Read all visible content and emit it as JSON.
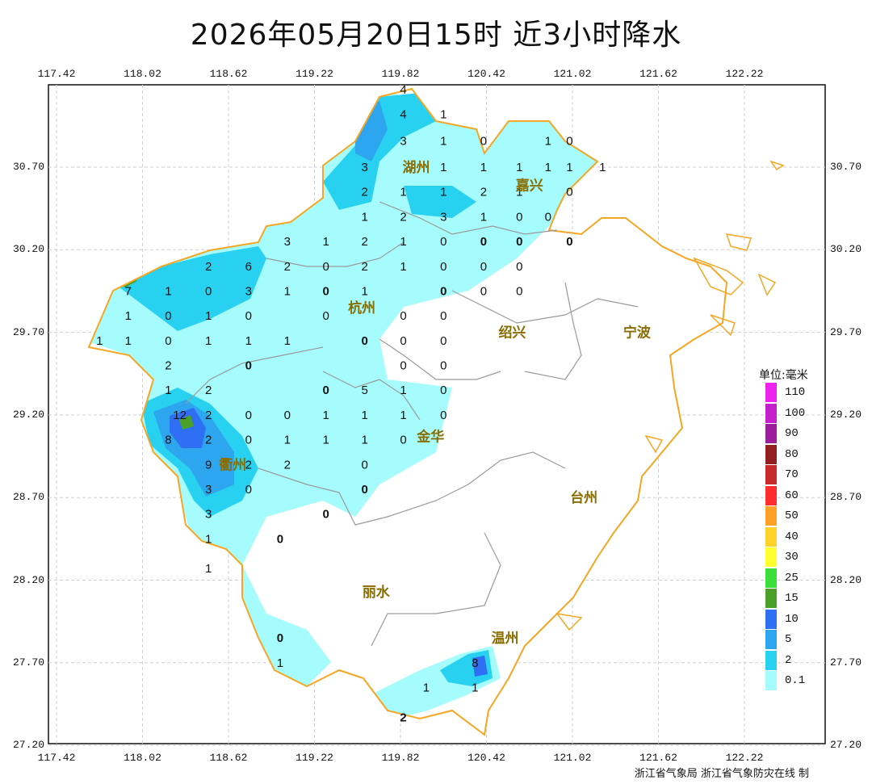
{
  "title": "2026年05月20日15时 近3小时降水",
  "x_ticks": [
    "117.42",
    "118.02",
    "118.62",
    "119.22",
    "119.82",
    "120.42",
    "121.02",
    "121.62",
    "122.22"
  ],
  "y_ticks": [
    "30.70",
    "30.20",
    "29.70",
    "29.20",
    "28.70",
    "28.20",
    "27.70",
    "27.20"
  ],
  "cities": [
    {
      "name": "湖州",
      "lon": 119.93,
      "lat": 30.7
    },
    {
      "name": "嘉兴",
      "lon": 120.72,
      "lat": 30.59
    },
    {
      "name": "杭州",
      "lon": 119.55,
      "lat": 29.85
    },
    {
      "name": "绍兴",
      "lon": 120.6,
      "lat": 29.7
    },
    {
      "name": "宁波",
      "lon": 121.47,
      "lat": 29.7
    },
    {
      "name": "衢州",
      "lon": 118.65,
      "lat": 28.9
    },
    {
      "name": "金华",
      "lon": 120.03,
      "lat": 29.07
    },
    {
      "name": "台州",
      "lon": 121.1,
      "lat": 28.7
    },
    {
      "name": "丽水",
      "lon": 119.65,
      "lat": 28.13
    },
    {
      "name": "温州",
      "lon": 120.55,
      "lat": 27.85
    }
  ],
  "rain_values": [
    {
      "v": "4",
      "lon": 119.84,
      "lat": 31.17
    },
    {
      "v": "4",
      "lon": 119.84,
      "lat": 31.02
    },
    {
      "v": "1",
      "lon": 120.12,
      "lat": 31.02
    },
    {
      "v": "3",
      "lon": 119.84,
      "lat": 30.86
    },
    {
      "v": "1",
      "lon": 120.12,
      "lat": 30.86
    },
    {
      "v": "0",
      "lon": 120.4,
      "lat": 30.86
    },
    {
      "v": "1",
      "lon": 120.85,
      "lat": 30.86
    },
    {
      "v": "0",
      "lon": 121.0,
      "lat": 30.86
    },
    {
      "v": "3",
      "lon": 119.57,
      "lat": 30.7
    },
    {
      "v": "1",
      "lon": 120.12,
      "lat": 30.7
    },
    {
      "v": "1",
      "lon": 120.4,
      "lat": 30.7
    },
    {
      "v": "1",
      "lon": 120.65,
      "lat": 30.7
    },
    {
      "v": "1",
      "lon": 120.85,
      "lat": 30.7
    },
    {
      "v": "1",
      "lon": 121.0,
      "lat": 30.7
    },
    {
      "v": "1",
      "lon": 121.23,
      "lat": 30.7
    },
    {
      "v": "2",
      "lon": 119.57,
      "lat": 30.55
    },
    {
      "v": "1",
      "lon": 119.84,
      "lat": 30.55
    },
    {
      "v": "1",
      "lon": 120.12,
      "lat": 30.55
    },
    {
      "v": "2",
      "lon": 120.4,
      "lat": 30.55
    },
    {
      "v": "1",
      "lon": 120.65,
      "lat": 30.55
    },
    {
      "v": "0",
      "lon": 121.0,
      "lat": 30.55
    },
    {
      "v": "1",
      "lon": 119.57,
      "lat": 30.4
    },
    {
      "v": "2",
      "lon": 119.84,
      "lat": 30.4
    },
    {
      "v": "3",
      "lon": 120.12,
      "lat": 30.4
    },
    {
      "v": "1",
      "lon": 120.4,
      "lat": 30.4
    },
    {
      "v": "0",
      "lon": 120.65,
      "lat": 30.4
    },
    {
      "v": "0",
      "lon": 120.85,
      "lat": 30.4
    },
    {
      "v": "3",
      "lon": 119.03,
      "lat": 30.25
    },
    {
      "v": "1",
      "lon": 119.3,
      "lat": 30.25
    },
    {
      "v": "2",
      "lon": 119.57,
      "lat": 30.25
    },
    {
      "v": "1",
      "lon": 119.84,
      "lat": 30.25
    },
    {
      "v": "0",
      "lon": 120.12,
      "lat": 30.25
    },
    {
      "v": "0",
      "lon": 120.4,
      "lat": 30.25,
      "bold": true
    },
    {
      "v": "0",
      "lon": 120.65,
      "lat": 30.25,
      "bold": true
    },
    {
      "v": "0",
      "lon": 121.0,
      "lat": 30.25,
      "bold": true
    },
    {
      "v": "2",
      "lon": 118.48,
      "lat": 30.1
    },
    {
      "v": "6",
      "lon": 118.76,
      "lat": 30.1
    },
    {
      "v": "2",
      "lon": 119.03,
      "lat": 30.1
    },
    {
      "v": "0",
      "lon": 119.3,
      "lat": 30.1
    },
    {
      "v": "2",
      "lon": 119.57,
      "lat": 30.1
    },
    {
      "v": "1",
      "lon": 119.84,
      "lat": 30.1
    },
    {
      "v": "0",
      "lon": 120.12,
      "lat": 30.1
    },
    {
      "v": "0",
      "lon": 120.4,
      "lat": 30.1
    },
    {
      "v": "0",
      "lon": 120.65,
      "lat": 30.1
    },
    {
      "v": "7",
      "lon": 117.92,
      "lat": 29.95
    },
    {
      "v": "1",
      "lon": 118.2,
      "lat": 29.95
    },
    {
      "v": "0",
      "lon": 118.48,
      "lat": 29.95
    },
    {
      "v": "3",
      "lon": 118.76,
      "lat": 29.95
    },
    {
      "v": "1",
      "lon": 119.03,
      "lat": 29.95
    },
    {
      "v": "0",
      "lon": 119.3,
      "lat": 29.95,
      "bold": true
    },
    {
      "v": "1",
      "lon": 119.57,
      "lat": 29.95
    },
    {
      "v": "0",
      "lon": 120.12,
      "lat": 29.95,
      "bold": true
    },
    {
      "v": "0",
      "lon": 120.4,
      "lat": 29.95
    },
    {
      "v": "0",
      "lon": 120.65,
      "lat": 29.95
    },
    {
      "v": "1",
      "lon": 117.92,
      "lat": 29.8
    },
    {
      "v": "0",
      "lon": 118.2,
      "lat": 29.8
    },
    {
      "v": "1",
      "lon": 118.48,
      "lat": 29.8
    },
    {
      "v": "0",
      "lon": 118.76,
      "lat": 29.8
    },
    {
      "v": "0",
      "lon": 119.3,
      "lat": 29.8
    },
    {
      "v": "0",
      "lon": 119.84,
      "lat": 29.8
    },
    {
      "v": "0",
      "lon": 120.12,
      "lat": 29.8
    },
    {
      "v": "1",
      "lon": 117.72,
      "lat": 29.65
    },
    {
      "v": "1",
      "lon": 117.92,
      "lat": 29.65
    },
    {
      "v": "0",
      "lon": 118.2,
      "lat": 29.65
    },
    {
      "v": "1",
      "lon": 118.48,
      "lat": 29.65
    },
    {
      "v": "1",
      "lon": 118.76,
      "lat": 29.65
    },
    {
      "v": "1",
      "lon": 119.03,
      "lat": 29.65
    },
    {
      "v": "0",
      "lon": 119.57,
      "lat": 29.65,
      "bold": true
    },
    {
      "v": "0",
      "lon": 119.84,
      "lat": 29.65
    },
    {
      "v": "0",
      "lon": 120.12,
      "lat": 29.65
    },
    {
      "v": "2",
      "lon": 118.2,
      "lat": 29.5
    },
    {
      "v": "0",
      "lon": 118.76,
      "lat": 29.5,
      "bold": true
    },
    {
      "v": "0",
      "lon": 119.84,
      "lat": 29.5
    },
    {
      "v": "0",
      "lon": 120.12,
      "lat": 29.5
    },
    {
      "v": "1",
      "lon": 118.2,
      "lat": 29.35
    },
    {
      "v": "2",
      "lon": 118.48,
      "lat": 29.35
    },
    {
      "v": "0",
      "lon": 119.3,
      "lat": 29.35,
      "bold": true
    },
    {
      "v": "5",
      "lon": 119.57,
      "lat": 29.35
    },
    {
      "v": "1",
      "lon": 119.84,
      "lat": 29.35
    },
    {
      "v": "0",
      "lon": 120.12,
      "lat": 29.35
    },
    {
      "v": "12",
      "lon": 118.28,
      "lat": 29.2
    },
    {
      "v": "2",
      "lon": 118.48,
      "lat": 29.2
    },
    {
      "v": "0",
      "lon": 118.76,
      "lat": 29.2
    },
    {
      "v": "0",
      "lon": 119.03,
      "lat": 29.2
    },
    {
      "v": "1",
      "lon": 119.3,
      "lat": 29.2
    },
    {
      "v": "1",
      "lon": 119.57,
      "lat": 29.2
    },
    {
      "v": "1",
      "lon": 119.84,
      "lat": 29.2
    },
    {
      "v": "0",
      "lon": 120.12,
      "lat": 29.2
    },
    {
      "v": "8",
      "lon": 118.2,
      "lat": 29.05
    },
    {
      "v": "2",
      "lon": 118.48,
      "lat": 29.05
    },
    {
      "v": "0",
      "lon": 118.76,
      "lat": 29.05
    },
    {
      "v": "1",
      "lon": 119.03,
      "lat": 29.05
    },
    {
      "v": "1",
      "lon": 119.3,
      "lat": 29.05
    },
    {
      "v": "1",
      "lon": 119.57,
      "lat": 29.05
    },
    {
      "v": "0",
      "lon": 119.84,
      "lat": 29.05
    },
    {
      "v": "9",
      "lon": 118.48,
      "lat": 28.9
    },
    {
      "v": "2",
      "lon": 118.76,
      "lat": 28.9
    },
    {
      "v": "2",
      "lon": 119.03,
      "lat": 28.9
    },
    {
      "v": "0",
      "lon": 119.57,
      "lat": 28.9
    },
    {
      "v": "3",
      "lon": 118.48,
      "lat": 28.75
    },
    {
      "v": "0",
      "lon": 118.76,
      "lat": 28.75
    },
    {
      "v": "0",
      "lon": 119.57,
      "lat": 28.75,
      "bold": true
    },
    {
      "v": "3",
      "lon": 118.48,
      "lat": 28.6
    },
    {
      "v": "0",
      "lon": 119.3,
      "lat": 28.6,
      "bold": true
    },
    {
      "v": "1",
      "lon": 118.48,
      "lat": 28.45
    },
    {
      "v": "0",
      "lon": 118.98,
      "lat": 28.45,
      "bold": true
    },
    {
      "v": "1",
      "lon": 118.48,
      "lat": 28.27
    },
    {
      "v": "0",
      "lon": 118.98,
      "lat": 27.85,
      "bold": true
    },
    {
      "v": "1",
      "lon": 118.98,
      "lat": 27.7
    },
    {
      "v": "8",
      "lon": 120.34,
      "lat": 27.7
    },
    {
      "v": "1",
      "lon": 120.0,
      "lat": 27.55
    },
    {
      "v": "1",
      "lon": 120.34,
      "lat": 27.55
    },
    {
      "v": "2",
      "lon": 119.84,
      "lat": 27.37,
      "bold": true
    }
  ],
  "legend": {
    "title": "单位:毫米",
    "items": [
      {
        "label": "110",
        "color": "#ee22ee"
      },
      {
        "label": "100",
        "color": "#c61fcc"
      },
      {
        "label": "90",
        "color": "#9b1f9b"
      },
      {
        "label": "80",
        "color": "#922020"
      },
      {
        "label": "70",
        "color": "#c62a2a"
      },
      {
        "label": "60",
        "color": "#ff2d2d"
      },
      {
        "label": "50",
        "color": "#ffa126"
      },
      {
        "label": "40",
        "color": "#ffd22b"
      },
      {
        "label": "30",
        "color": "#ffff2e"
      },
      {
        "label": "25",
        "color": "#3cde3c"
      },
      {
        "label": "15",
        "color": "#4ba02a"
      },
      {
        "label": "10",
        "color": "#2f6ff3"
      },
      {
        "label": "5",
        "color": "#2ea6ef"
      },
      {
        "label": "2",
        "color": "#28d1ef"
      },
      {
        "label": "0.1",
        "color": "#a6fcfc"
      }
    ]
  },
  "credit": "浙江省气象局 浙江省气象防灾在线 制"
}
